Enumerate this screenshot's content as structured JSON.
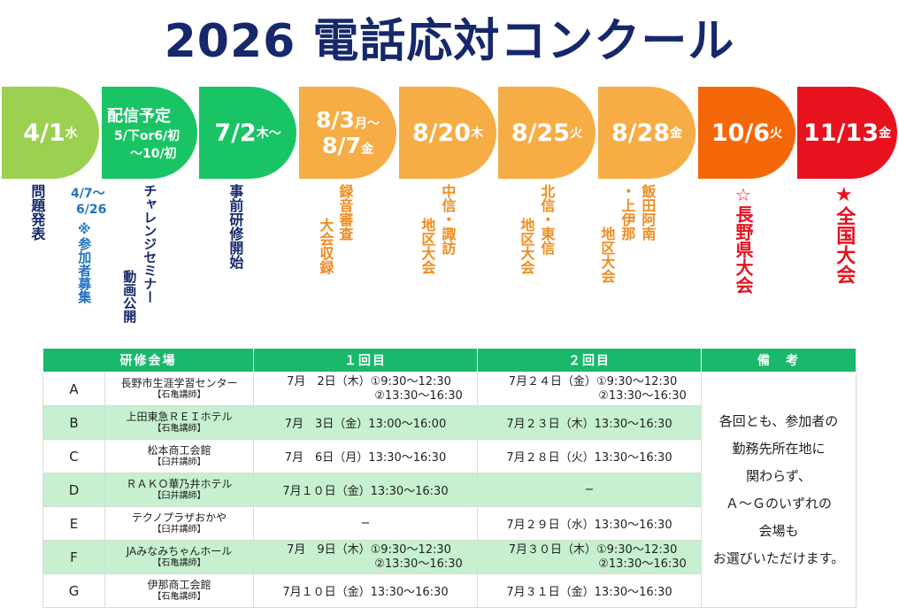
{
  "title": "2026 電話応対コンクール",
  "timeline": [
    {
      "date": "4/1",
      "suffix": "水",
      "color": "#9bd050"
    },
    {
      "date": "配信予定",
      "sub1": "5/下or6/初",
      "sub2": "〜10/初",
      "color": "#19c465"
    },
    {
      "date": "7/2",
      "suffix": "木〜",
      "color": "#19c465"
    },
    {
      "date": "8/3",
      "suffix": "月〜",
      "date2": "8/7",
      "suffix2": "金",
      "color": "#f6ad45"
    },
    {
      "date": "8/20",
      "suffix": "木",
      "color": "#f6ad45"
    },
    {
      "date": "8/25",
      "suffix": "火",
      "color": "#f6ad45"
    },
    {
      "date": "8/28",
      "suffix": "金",
      "color": "#f6ad45"
    },
    {
      "date": "10/6",
      "suffix": "火",
      "color": "#f5680a"
    },
    {
      "date": "11/13",
      "suffix": "金",
      "color": "#e8111e"
    }
  ],
  "notes": {
    "mondai": "問題発表",
    "bosyu_date1": "4/7〜",
    "bosyu_date2": "6/26",
    "bosyu": "※参加者募集",
    "seminar1": "チャレンジセミナー",
    "seminar2": "動画公開",
    "kensyu": "事前研修開始",
    "rokuon1": "録音審査",
    "rokuon2": "大会収録",
    "chushin1": "中信・諏訪",
    "chushin2": "地区大会",
    "hokushin1": "北信・東信",
    "hokushin2": "地区大会",
    "iida1": "飯田阿南",
    "iida2": "・上伊那",
    "iida3": "地区大会",
    "kenn": "☆長野県大会",
    "zenkoku": "★全国大会"
  },
  "colors": {
    "header_green": "#19b86b",
    "row_alt": "#c6f0cf",
    "title_navy": "#16286b"
  },
  "table": {
    "headers": [
      "研修会場",
      "１回目",
      "２回目",
      "備　考"
    ],
    "rows": [
      {
        "letter": "A",
        "venue": "長野市生涯学習センター",
        "lecturer": "【石亀講師】",
        "r1a": "7月　2日（木）①9:30〜12:30",
        "r1b": "②13:30〜16:30",
        "r2a": "7月２４日（金）①9:30〜12:30",
        "r2b": "②13:30〜16:30"
      },
      {
        "letter": "B",
        "venue": "上田東急ＲＥＩホテル",
        "lecturer": "【石亀講師】",
        "r1a": "7月　3日（金）13:00〜16:00",
        "r1b": "",
        "r2a": "7月２３日（木）13:30〜16:30",
        "r2b": ""
      },
      {
        "letter": "C",
        "venue": "松本商工会館",
        "lecturer": "【臼井講師】",
        "r1a": "7月　6日（月）13:30〜16:30",
        "r1b": "",
        "r2a": "7月２８日（火）13:30〜16:30",
        "r2b": ""
      },
      {
        "letter": "D",
        "venue": "ＲＡＫＯ華乃井ホテル",
        "lecturer": "【臼井講師】",
        "r1a": "7月１０日（金）13:30〜16:30",
        "r1b": "",
        "r2a": "−",
        "r2b": ""
      },
      {
        "letter": "E",
        "venue": "テクノプラザおかや",
        "lecturer": "【臼井講師】",
        "r1a": "−",
        "r1b": "",
        "r2a": "7月２９日（水）13:30〜16:30",
        "r2b": ""
      },
      {
        "letter": "F",
        "venue": "JAみなみちゃんホール",
        "lecturer": "【石亀講師】",
        "r1a": "7月　9日（木）①9:30〜12:30",
        "r1b": "②13:30〜16:30",
        "r2a": "7月３０日（木）①9:30〜12:30",
        "r2b": "②13:30〜16:30"
      },
      {
        "letter": "G",
        "venue": "伊那商工会館",
        "lecturer": "【石亀講師】",
        "r1a": "7月１０日（金）13:30〜16:30",
        "r1b": "",
        "r2a": "7月３１日（金）13:30〜16:30",
        "r2b": ""
      }
    ],
    "remark": [
      "各回とも、参加者の",
      "勤務先所在地に",
      "関わらず、",
      "Ａ〜Ｇのいずれの",
      "会場も",
      "お選びいただけます。"
    ]
  }
}
